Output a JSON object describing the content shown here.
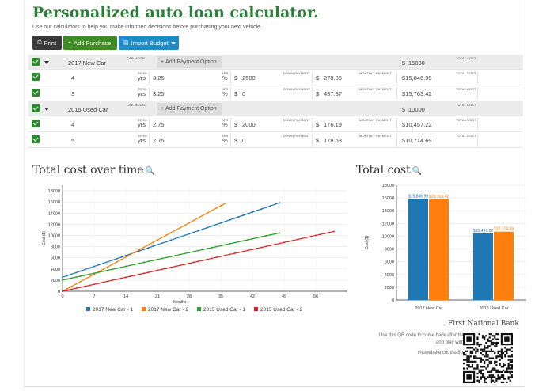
{
  "header": {
    "title": "Personalized auto loan calculator.",
    "subtitle": "Use our calculators to help you make informed decisions before purchasing your next vehicle"
  },
  "toolbar": {
    "print_label": "Print",
    "add_purchase_label": "Add Purchase",
    "import_budget_label": "Import Budget"
  },
  "labels": {
    "car_model": "CAR MODEL",
    "total_cost": "TOTAL COST",
    "term": "TERM",
    "apr": "APR",
    "down_payment": "DOWN PAYMENT",
    "monthly_payment": "MONTHLY PAYMENT",
    "yrs": "yrs",
    "percent": "%",
    "dollar": "$",
    "add_payment_option": "Add Payment Option"
  },
  "purchases": [
    {
      "name": "2017 New Car",
      "total_cost": "15000",
      "options": [
        {
          "term": "4",
          "apr": "3.25",
          "down_payment": "2500",
          "monthly_payment": "278.06",
          "total_cost": "$15,846.99"
        },
        {
          "term": "3",
          "apr": "3.25",
          "down_payment": "0",
          "monthly_payment": "437.87",
          "total_cost": "$15,763.42"
        }
      ]
    },
    {
      "name": "2015 Used Car",
      "total_cost": "10000",
      "options": [
        {
          "term": "4",
          "apr": "2.75",
          "down_payment": "2000",
          "monthly_payment": "176.19",
          "total_cost": "$10,457.22"
        },
        {
          "term": "5",
          "apr": "2.75",
          "down_payment": "0",
          "monthly_payment": "178.58",
          "total_cost": "$10,714.69"
        }
      ]
    }
  ],
  "charts": {
    "line_title": "Total cost over time",
    "bar_title": "Total cost"
  },
  "colors": {
    "brand_green": "#2f7d3a",
    "series_blue": "#1f77b4",
    "series_orange": "#ff7f0e",
    "series_green": "#2ca02c",
    "series_red": "#d62728"
  },
  "chart_data": [
    {
      "type": "line",
      "title": "Total cost over time",
      "xlabel": "Months",
      "ylabel": "Cost ($)",
      "xlim": [
        0,
        63
      ],
      "ylim": [
        0,
        19000
      ],
      "x_ticks": [
        0,
        7,
        14,
        21,
        28,
        35,
        42,
        49,
        56
      ],
      "y_ticks": [
        0,
        2000,
        4000,
        6000,
        8000,
        10000,
        12000,
        14000,
        16000,
        18000
      ],
      "grid": true,
      "legend": "bottom",
      "series": [
        {
          "name": "2017 New Car - 1",
          "color": "#1f77b4",
          "x": [
            0,
            48
          ],
          "y": [
            2500,
            15846.99
          ]
        },
        {
          "name": "2017 New Car - 2",
          "color": "#ff7f0e",
          "x": [
            0,
            36
          ],
          "y": [
            0,
            15763.42
          ]
        },
        {
          "name": "2015 Used Car - 1",
          "color": "#2ca02c",
          "x": [
            0,
            48
          ],
          "y": [
            2000,
            10457.22
          ]
        },
        {
          "name": "2015 Used Car - 2",
          "color": "#d62728",
          "x": [
            0,
            60
          ],
          "y": [
            0,
            10714.69
          ]
        }
      ]
    },
    {
      "type": "bar",
      "title": "Total cost",
      "ylabel": "Cost ($)",
      "ylim": [
        0,
        18000
      ],
      "y_ticks": [
        0,
        2000,
        4000,
        6000,
        8000,
        10000,
        12000,
        14000,
        16000,
        18000
      ],
      "categories": [
        "2017 New Car",
        "2015 Used Car"
      ],
      "series": [
        {
          "color": "#1f77b4",
          "values": [
            15846.99,
            10457.22
          ],
          "labels": [
            "$15,846.99",
            "$10,457.22"
          ]
        },
        {
          "color": "#ff7f0e",
          "values": [
            15763.42,
            10714.69
          ],
          "labels": [
            "$15,763.42",
            "$10,714.69"
          ]
        }
      ]
    }
  ],
  "bank": {
    "name": "First National Bank",
    "qr_note": "Use this QR code to come back after this meeting and play with numbers",
    "url": "thiswebsite.com/sa8p0mPK1hz"
  }
}
